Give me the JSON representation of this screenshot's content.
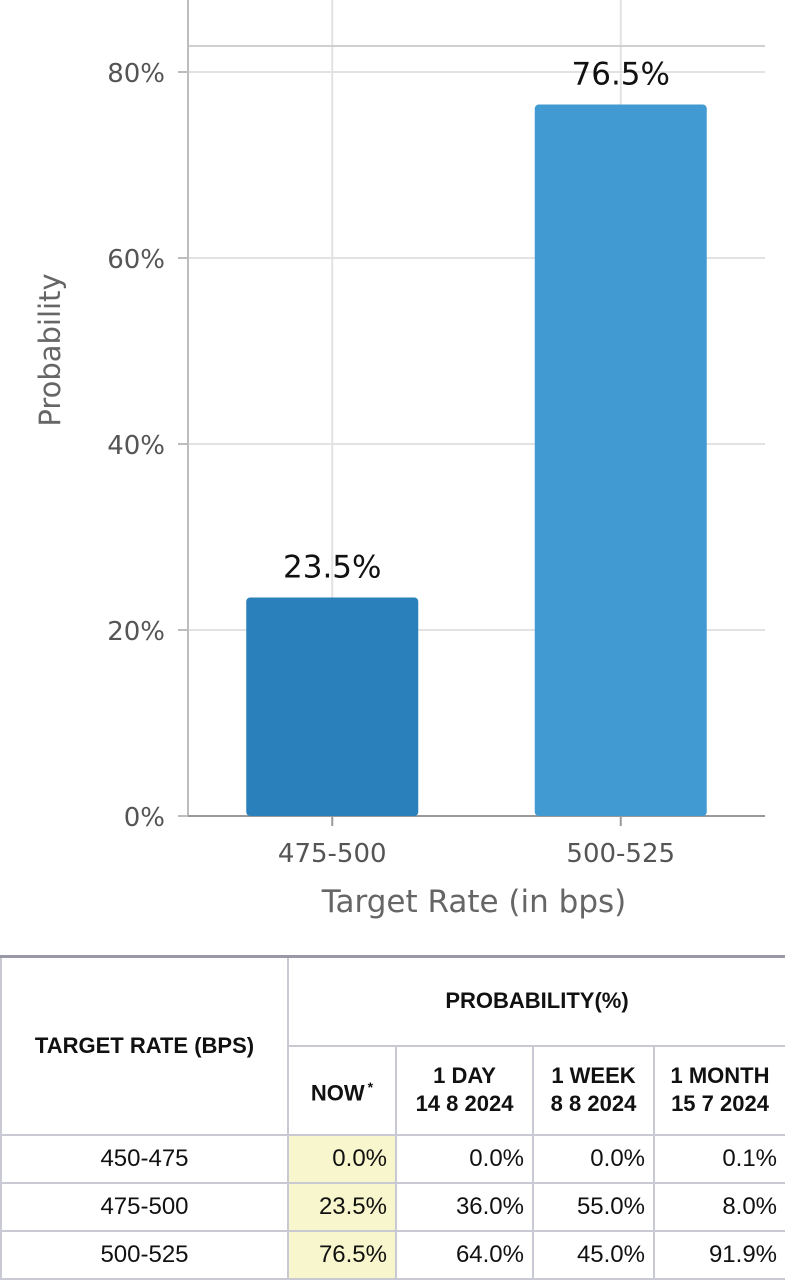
{
  "chart_data": {
    "type": "bar",
    "categories": [
      "475-500",
      "500-525"
    ],
    "values": [
      23.5,
      76.5
    ],
    "data_labels": [
      "23.5%",
      "76.5%"
    ],
    "colors": [
      "#2a80ba",
      "#429ad2"
    ],
    "ylabel": "Probability",
    "xlabel": "Target Rate (in bps)",
    "ylim": [
      0,
      80
    ],
    "yticks": [
      0,
      20,
      40,
      60,
      80
    ],
    "ytick_labels": [
      "0%",
      "20%",
      "40%",
      "60%",
      "80%"
    ],
    "grid": true
  },
  "table": {
    "header_rate": "TARGET RATE (BPS)",
    "header_prob": "PROBABILITY(%)",
    "columns": [
      {
        "label": "NOW",
        "note": "*"
      },
      {
        "label": "1 DAY",
        "date": "14 8 2024"
      },
      {
        "label": "1 WEEK",
        "date": "8 8 2024"
      },
      {
        "label": "1 MONTH",
        "date": "15 7 2024"
      }
    ],
    "rows": [
      {
        "rate": "450-475",
        "values": [
          "0.0%",
          "0.0%",
          "0.0%",
          "0.1%"
        ]
      },
      {
        "rate": "475-500",
        "values": [
          "23.5%",
          "36.0%",
          "55.0%",
          "8.0%"
        ]
      },
      {
        "rate": "500-525",
        "values": [
          "76.5%",
          "64.0%",
          "45.0%",
          "91.9%"
        ]
      }
    ]
  }
}
